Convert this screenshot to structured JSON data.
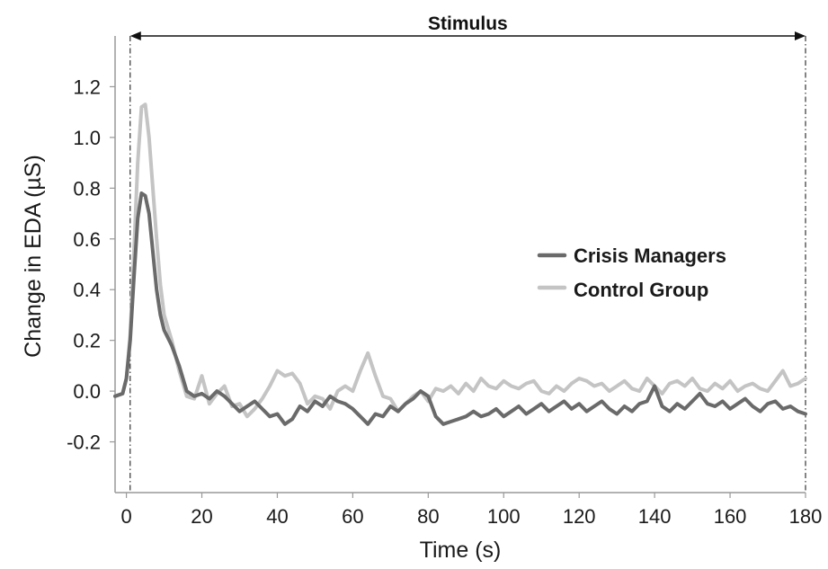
{
  "chart_data": {
    "type": "line",
    "xlabel": "Time (s)",
    "ylabel": "Change in EDA (µS)",
    "xlim": [
      -3,
      180
    ],
    "ylim": [
      -0.4,
      1.4
    ],
    "xticks": [
      0,
      20,
      40,
      60,
      80,
      100,
      120,
      140,
      160,
      180
    ],
    "yticks": [
      -0.2,
      0.0,
      0.2,
      0.4,
      0.6,
      0.8,
      1.0,
      1.2
    ],
    "ytick_labels": [
      "-0.2",
      "0.0",
      "0.2",
      "0.4",
      "0.6",
      "0.8",
      "1.0",
      "1.2"
    ],
    "grid": false,
    "legend_position": "center-right",
    "annotation": {
      "text": "Stimulus",
      "x_start": 1,
      "x_end": 180
    },
    "series": [
      {
        "name": "Control Group",
        "color": "#c4c4c4",
        "x": [
          -3,
          -1,
          0,
          1,
          2,
          3,
          4,
          5,
          6,
          7,
          8,
          9,
          10,
          12,
          14,
          16,
          18,
          20,
          22,
          24,
          26,
          28,
          30,
          32,
          34,
          36,
          38,
          40,
          42,
          44,
          46,
          48,
          50,
          52,
          54,
          56,
          58,
          60,
          62,
          64,
          66,
          68,
          70,
          72,
          74,
          76,
          78,
          80,
          82,
          84,
          86,
          88,
          90,
          92,
          94,
          96,
          98,
          100,
          102,
          104,
          106,
          108,
          110,
          112,
          114,
          116,
          118,
          120,
          122,
          124,
          126,
          128,
          130,
          132,
          134,
          136,
          138,
          140,
          142,
          144,
          146,
          148,
          150,
          152,
          154,
          156,
          158,
          160,
          162,
          164,
          166,
          168,
          170,
          172,
          174,
          176,
          178,
          180
        ],
        "y": [
          -0.02,
          -0.01,
          0.05,
          0.22,
          0.55,
          0.9,
          1.12,
          1.13,
          1.0,
          0.8,
          0.6,
          0.42,
          0.3,
          0.2,
          0.08,
          -0.02,
          -0.03,
          0.06,
          -0.05,
          -0.01,
          0.02,
          -0.06,
          -0.05,
          -0.1,
          -0.07,
          -0.03,
          0.02,
          0.08,
          0.06,
          0.07,
          0.03,
          -0.05,
          -0.02,
          -0.03,
          -0.07,
          0.0,
          0.02,
          0.0,
          0.08,
          0.15,
          0.06,
          -0.02,
          -0.03,
          -0.08,
          -0.05,
          -0.02,
          0.0,
          -0.04,
          0.01,
          0.0,
          0.02,
          -0.01,
          0.03,
          0.0,
          0.05,
          0.02,
          0.01,
          0.04,
          0.02,
          0.01,
          0.03,
          0.04,
          0.0,
          -0.01,
          0.02,
          0.0,
          0.03,
          0.05,
          0.04,
          0.02,
          0.03,
          0.0,
          0.02,
          0.04,
          0.01,
          0.0,
          0.05,
          0.02,
          -0.01,
          0.03,
          0.04,
          0.02,
          0.05,
          0.01,
          0.0,
          0.03,
          0.01,
          0.04,
          0.0,
          0.02,
          0.03,
          0.01,
          0.0,
          0.04,
          0.08,
          0.02,
          0.03,
          0.05
        ]
      },
      {
        "name": "Crisis Managers",
        "color": "#6a6a6a",
        "x": [
          -3,
          -1,
          0,
          1,
          2,
          3,
          4,
          5,
          6,
          7,
          8,
          9,
          10,
          12,
          14,
          16,
          18,
          20,
          22,
          24,
          26,
          28,
          30,
          32,
          34,
          36,
          38,
          40,
          42,
          44,
          46,
          48,
          50,
          52,
          54,
          56,
          58,
          60,
          62,
          64,
          66,
          68,
          70,
          72,
          74,
          76,
          78,
          80,
          82,
          84,
          86,
          88,
          90,
          92,
          94,
          96,
          98,
          100,
          102,
          104,
          106,
          108,
          110,
          112,
          114,
          116,
          118,
          120,
          122,
          124,
          126,
          128,
          130,
          132,
          134,
          136,
          138,
          140,
          142,
          144,
          146,
          148,
          150,
          152,
          154,
          156,
          158,
          160,
          162,
          164,
          166,
          168,
          170,
          172,
          174,
          176,
          178,
          180
        ],
        "y": [
          -0.02,
          -0.01,
          0.05,
          0.2,
          0.45,
          0.68,
          0.78,
          0.77,
          0.7,
          0.55,
          0.4,
          0.3,
          0.24,
          0.18,
          0.1,
          0.0,
          -0.02,
          -0.01,
          -0.03,
          0.0,
          -0.02,
          -0.05,
          -0.08,
          -0.06,
          -0.04,
          -0.07,
          -0.1,
          -0.09,
          -0.13,
          -0.11,
          -0.06,
          -0.08,
          -0.04,
          -0.06,
          -0.02,
          -0.04,
          -0.05,
          -0.07,
          -0.1,
          -0.13,
          -0.09,
          -0.1,
          -0.06,
          -0.08,
          -0.05,
          -0.03,
          0.0,
          -0.02,
          -0.1,
          -0.13,
          -0.12,
          -0.11,
          -0.1,
          -0.08,
          -0.1,
          -0.09,
          -0.07,
          -0.1,
          -0.08,
          -0.06,
          -0.09,
          -0.07,
          -0.05,
          -0.08,
          -0.06,
          -0.04,
          -0.07,
          -0.05,
          -0.08,
          -0.06,
          -0.04,
          -0.07,
          -0.09,
          -0.06,
          -0.08,
          -0.05,
          -0.04,
          0.02,
          -0.06,
          -0.08,
          -0.05,
          -0.07,
          -0.04,
          -0.01,
          -0.05,
          -0.06,
          -0.04,
          -0.07,
          -0.05,
          -0.03,
          -0.06,
          -0.08,
          -0.05,
          -0.04,
          -0.07,
          -0.06,
          -0.08,
          -0.09
        ]
      }
    ]
  }
}
